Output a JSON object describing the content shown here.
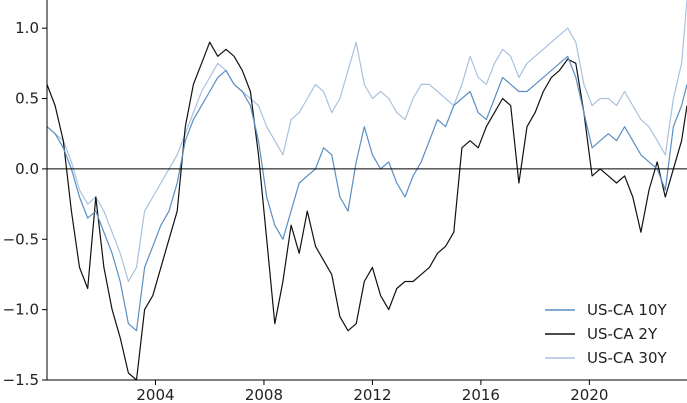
{
  "chart_data": {
    "type": "line",
    "title": "",
    "xlabel": "",
    "ylabel": "",
    "xlim": [
      2000.0,
      2023.6
    ],
    "ylim": [
      -1.5,
      1.2
    ],
    "xticks": [
      {
        "value": 2004,
        "label": "2004"
      },
      {
        "value": 2008,
        "label": "2008"
      },
      {
        "value": 2012,
        "label": "2012"
      },
      {
        "value": 2016,
        "label": "2016"
      },
      {
        "value": 2020,
        "label": "2020"
      }
    ],
    "yticks": [
      {
        "value": 1.0,
        "label": "1.0"
      },
      {
        "value": 0.5,
        "label": "0.5"
      },
      {
        "value": 0.0,
        "label": "0.0"
      },
      {
        "value": -0.5,
        "label": "−0.5"
      },
      {
        "value": -1.0,
        "label": "−1.0"
      },
      {
        "value": -1.5,
        "label": "−1.5"
      }
    ],
    "reference_line": 0.0,
    "grid": false,
    "legend_position": "lower-right",
    "series": [
      {
        "name": "US-CA 10Y",
        "color": "#5b8ec4",
        "x": [
          2000.0,
          2000.3,
          2000.6,
          2000.9,
          2001.2,
          2001.5,
          2001.8,
          2002.1,
          2002.4,
          2002.7,
          2003.0,
          2003.3,
          2003.6,
          2003.9,
          2004.2,
          2004.5,
          2004.8,
          2005.1,
          2005.4,
          2005.7,
          2006.0,
          2006.3,
          2006.6,
          2006.9,
          2007.2,
          2007.5,
          2007.8,
          2008.1,
          2008.4,
          2008.7,
          2009.0,
          2009.3,
          2009.6,
          2009.9,
          2010.2,
          2010.5,
          2010.8,
          2011.1,
          2011.4,
          2011.7,
          2012.0,
          2012.3,
          2012.6,
          2012.9,
          2013.2,
          2013.5,
          2013.8,
          2014.1,
          2014.4,
          2014.7,
          2015.0,
          2015.3,
          2015.6,
          2015.9,
          2016.2,
          2016.5,
          2016.8,
          2017.1,
          2017.4,
          2017.7,
          2018.0,
          2018.3,
          2018.6,
          2018.9,
          2019.2,
          2019.5,
          2019.8,
          2020.1,
          2020.4,
          2020.7,
          2021.0,
          2021.3,
          2021.6,
          2021.9,
          2022.2,
          2022.5,
          2022.8,
          2023.1,
          2023.4,
          2023.6
        ],
        "y": [
          0.3,
          0.25,
          0.15,
          0.0,
          -0.2,
          -0.35,
          -0.3,
          -0.45,
          -0.6,
          -0.8,
          -1.1,
          -1.15,
          -0.7,
          -0.55,
          -0.4,
          -0.3,
          -0.1,
          0.2,
          0.35,
          0.45,
          0.55,
          0.65,
          0.7,
          0.6,
          0.55,
          0.45,
          0.2,
          -0.2,
          -0.4,
          -0.5,
          -0.3,
          -0.1,
          -0.05,
          0.0,
          0.15,
          0.1,
          -0.2,
          -0.3,
          0.05,
          0.3,
          0.1,
          0.0,
          0.05,
          -0.1,
          -0.2,
          -0.05,
          0.05,
          0.2,
          0.35,
          0.3,
          0.45,
          0.5,
          0.55,
          0.4,
          0.35,
          0.5,
          0.65,
          0.6,
          0.55,
          0.55,
          0.6,
          0.65,
          0.7,
          0.75,
          0.8,
          0.65,
          0.4,
          0.15,
          0.2,
          0.25,
          0.2,
          0.3,
          0.2,
          0.1,
          0.05,
          0.0,
          -0.15,
          0.3,
          0.45,
          0.6
        ]
      },
      {
        "name": "US-CA 2Y",
        "color": "#111111",
        "x": [
          2000.0,
          2000.3,
          2000.6,
          2000.9,
          2001.2,
          2001.5,
          2001.8,
          2002.1,
          2002.4,
          2002.7,
          2003.0,
          2003.3,
          2003.6,
          2003.9,
          2004.2,
          2004.5,
          2004.8,
          2005.1,
          2005.4,
          2005.7,
          2006.0,
          2006.3,
          2006.6,
          2006.9,
          2007.2,
          2007.5,
          2007.8,
          2008.1,
          2008.4,
          2008.7,
          2009.0,
          2009.3,
          2009.6,
          2009.9,
          2010.2,
          2010.5,
          2010.8,
          2011.1,
          2011.4,
          2011.7,
          2012.0,
          2012.3,
          2012.6,
          2012.9,
          2013.2,
          2013.5,
          2013.8,
          2014.1,
          2014.4,
          2014.7,
          2015.0,
          2015.3,
          2015.6,
          2015.9,
          2016.2,
          2016.5,
          2016.8,
          2017.1,
          2017.4,
          2017.7,
          2018.0,
          2018.3,
          2018.6,
          2018.9,
          2019.2,
          2019.5,
          2019.8,
          2020.1,
          2020.4,
          2020.7,
          2021.0,
          2021.3,
          2021.6,
          2021.9,
          2022.2,
          2022.5,
          2022.8,
          2023.1,
          2023.4,
          2023.6
        ],
        "y": [
          0.6,
          0.45,
          0.2,
          -0.3,
          -0.7,
          -0.85,
          -0.2,
          -0.7,
          -1.0,
          -1.2,
          -1.45,
          -1.5,
          -1.0,
          -0.9,
          -0.7,
          -0.5,
          -0.3,
          0.3,
          0.6,
          0.75,
          0.9,
          0.8,
          0.85,
          0.8,
          0.7,
          0.55,
          0.1,
          -0.5,
          -1.1,
          -0.8,
          -0.4,
          -0.6,
          -0.3,
          -0.55,
          -0.65,
          -0.75,
          -1.05,
          -1.15,
          -1.1,
          -0.8,
          -0.7,
          -0.9,
          -1.0,
          -0.85,
          -0.8,
          -0.8,
          -0.75,
          -0.7,
          -0.6,
          -0.55,
          -0.45,
          0.15,
          0.2,
          0.15,
          0.3,
          0.4,
          0.5,
          0.45,
          -0.1,
          0.3,
          0.4,
          0.55,
          0.65,
          0.7,
          0.78,
          0.75,
          0.4,
          -0.05,
          0.0,
          -0.05,
          -0.1,
          -0.05,
          -0.2,
          -0.45,
          -0.15,
          0.05,
          -0.2,
          0.0,
          0.2,
          0.45
        ]
      },
      {
        "name": "US-CA 30Y",
        "color": "#a9c2e0",
        "x": [
          2000.0,
          2000.3,
          2000.6,
          2000.9,
          2001.2,
          2001.5,
          2001.8,
          2002.1,
          2002.4,
          2002.7,
          2003.0,
          2003.3,
          2003.6,
          2003.9,
          2004.2,
          2004.5,
          2004.8,
          2005.1,
          2005.4,
          2005.7,
          2006.0,
          2006.3,
          2006.6,
          2006.9,
          2007.2,
          2007.5,
          2007.8,
          2008.1,
          2008.4,
          2008.7,
          2009.0,
          2009.3,
          2009.6,
          2009.9,
          2010.2,
          2010.5,
          2010.8,
          2011.1,
          2011.4,
          2011.7,
          2012.0,
          2012.3,
          2012.6,
          2012.9,
          2013.2,
          2013.5,
          2013.8,
          2014.1,
          2014.4,
          2014.7,
          2015.0,
          2015.3,
          2015.6,
          2015.9,
          2016.2,
          2016.5,
          2016.8,
          2017.1,
          2017.4,
          2017.7,
          2018.0,
          2018.3,
          2018.6,
          2018.9,
          2019.2,
          2019.5,
          2019.8,
          2020.1,
          2020.4,
          2020.7,
          2021.0,
          2021.3,
          2021.6,
          2021.9,
          2022.2,
          2022.5,
          2022.8,
          2023.1,
          2023.4,
          2023.6
        ],
        "y": [
          0.3,
          0.25,
          0.2,
          0.05,
          -0.15,
          -0.25,
          -0.2,
          -0.3,
          -0.45,
          -0.6,
          -0.8,
          -0.7,
          -0.3,
          -0.2,
          -0.1,
          0.0,
          0.1,
          0.25,
          0.4,
          0.55,
          0.65,
          0.75,
          0.7,
          0.6,
          0.55,
          0.5,
          0.45,
          0.3,
          0.2,
          0.1,
          0.35,
          0.4,
          0.5,
          0.6,
          0.55,
          0.4,
          0.5,
          0.7,
          0.9,
          0.6,
          0.5,
          0.55,
          0.5,
          0.4,
          0.35,
          0.5,
          0.6,
          0.6,
          0.55,
          0.5,
          0.45,
          0.6,
          0.8,
          0.65,
          0.6,
          0.75,
          0.85,
          0.8,
          0.65,
          0.75,
          0.8,
          0.85,
          0.9,
          0.95,
          1.0,
          0.9,
          0.6,
          0.45,
          0.5,
          0.5,
          0.45,
          0.55,
          0.45,
          0.35,
          0.3,
          0.2,
          0.1,
          0.5,
          0.75,
          1.2
        ]
      }
    ]
  }
}
